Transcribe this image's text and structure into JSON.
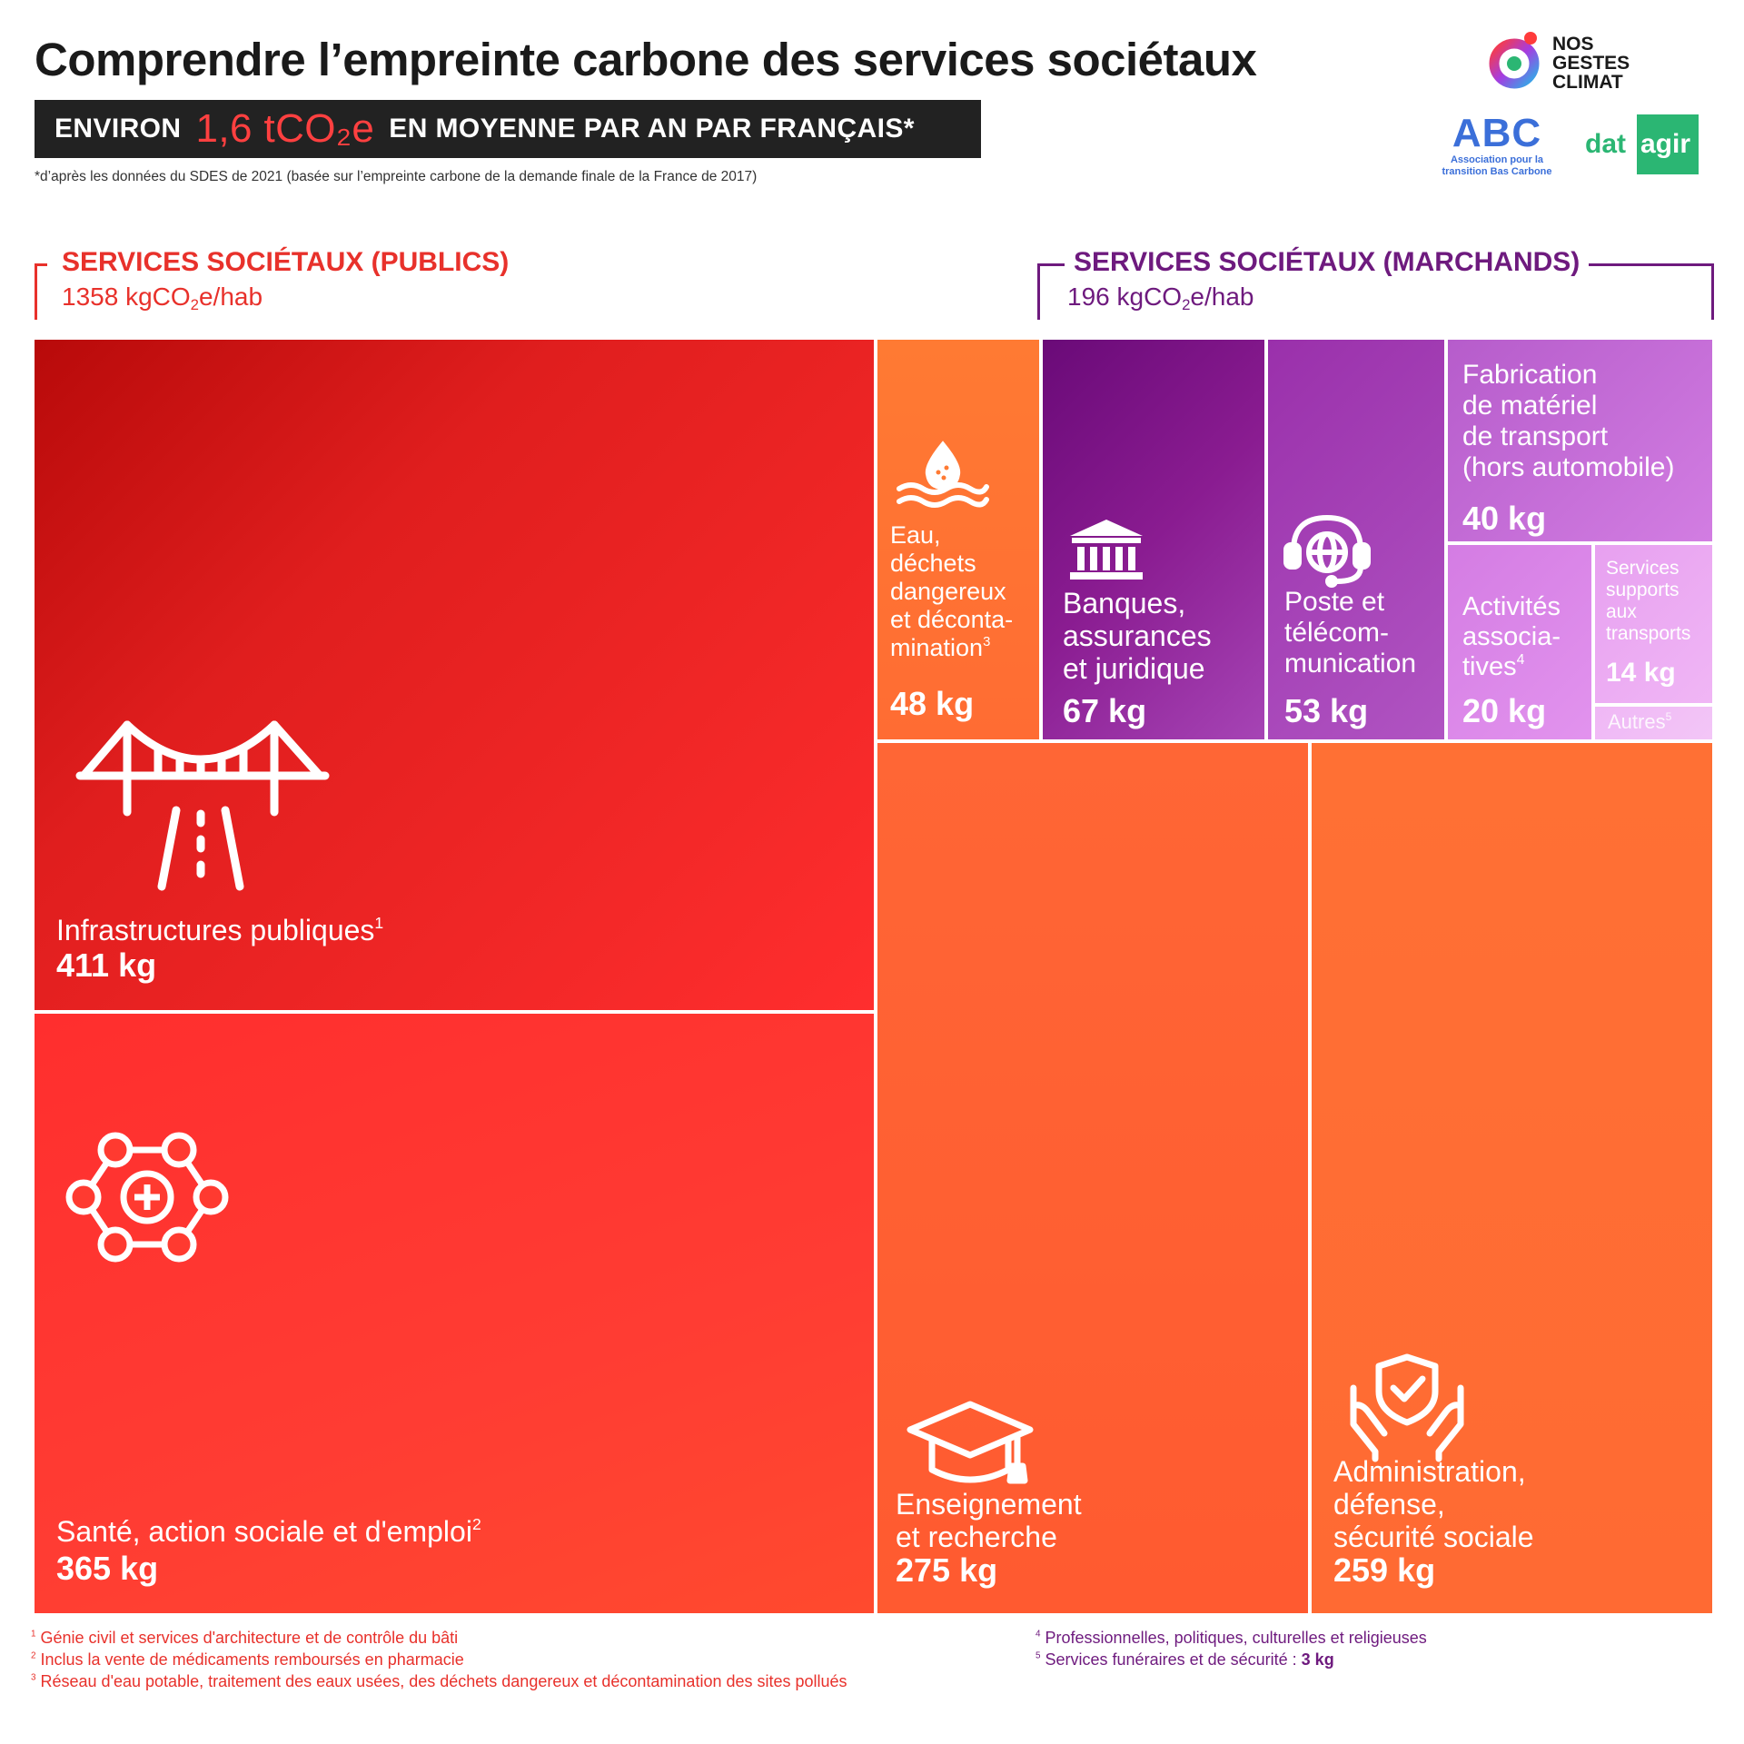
{
  "header": {
    "title": "Comprendre l’empreinte carbone des services sociétaux",
    "banner_left": "ENVIRON",
    "banner_highlight": "1,6 tCO₂e",
    "banner_right": "EN MOYENNE PAR AN PAR FRANÇAIS*",
    "source_note": "*d’après les données du SDES de 2021 (basée sur l’empreinte carbone de la demande finale de la France de 2017)"
  },
  "logos": {
    "nos_gestes_climat": [
      "NOS",
      "GESTES",
      "CLIMAT"
    ],
    "abc_short": "ABC",
    "abc_full_1": "Association pour la",
    "abc_full_2": "transition Bas Carbone",
    "datagir_left": "dat",
    "datagir_right": "agir"
  },
  "groups": {
    "public": {
      "title": "SERVICES SOCIÉTAUX (PUBLICS)",
      "value_prefix": "1358 kgCO",
      "value_sub": "2",
      "value_suffix": "e/hab",
      "color": "#e8312b"
    },
    "market": {
      "title": "SERVICES SOCIÉTAUX (MARCHANDS)",
      "value_prefix": "196 kgCO",
      "value_sub": "2",
      "value_suffix": "e/hab",
      "color": "#6e1a7e"
    }
  },
  "chart_data": {
    "type": "treemap",
    "unit": "kg",
    "groups": [
      {
        "name": "SERVICES SOCIÉTAUX (PUBLICS)",
        "total": 1358,
        "items": [
          {
            "label": "Infrastructures publiques",
            "note": "1",
            "value": 411,
            "value_label": "411 kg",
            "icon": "bridge-road-icon",
            "color": "#e0201e"
          },
          {
            "label": "Santé, action sociale et d'emploi",
            "note": "2",
            "value": 365,
            "value_label": "365 kg",
            "icon": "health-network-icon",
            "color": "#ff3a30"
          },
          {
            "label": "Enseignement\net recherche",
            "note": "",
            "value": 275,
            "value_label": "275 kg",
            "icon": "graduation-cap-icon",
            "color": "#ff5a32"
          },
          {
            "label": "Administration,\ndéfense,\nsécurité sociale",
            "note": "",
            "value": 259,
            "value_label": "259 kg",
            "icon": "protected-hands-icon",
            "color": "#ff6b35"
          },
          {
            "label": "Eau,\ndéchets\ndangereux\net déconta-\nmination",
            "note": "3",
            "value": 48,
            "value_label": "48 kg",
            "icon": "water-drop-icon",
            "color": "#ff7a33"
          }
        ]
      },
      {
        "name": "SERVICES SOCIÉTAUX (MARCHANDS)",
        "total": 196,
        "items": [
          {
            "label": "Banques,\nassurances\net juridique",
            "note": "",
            "value": 67,
            "value_label": "67 kg",
            "icon": "bank-icon",
            "color": "#8a1c91"
          },
          {
            "label": "Poste et\ntélécom-\nmunication",
            "note": "",
            "value": 53,
            "value_label": "53 kg",
            "icon": "headset-globe-icon",
            "color": "#a83cb6"
          },
          {
            "label": "Fabrication\nde matériel\nde transport\n(hors automobile)",
            "note": "",
            "value": 40,
            "value_label": "40 kg",
            "icon": "",
            "color": "#c666d6"
          },
          {
            "label": "Activités\nassocia-\ntives",
            "note": "4",
            "value": 20,
            "value_label": "20 kg",
            "icon": "",
            "color": "#d87ce6"
          },
          {
            "label": "Services\nsupports\naux\ntransports",
            "note": "",
            "value": 14,
            "value_label": "14 kg",
            "icon": "",
            "color": "#e79cef"
          },
          {
            "label": "Autres",
            "note": "5",
            "value": 3,
            "value_label": "",
            "icon": "",
            "color": "#efb5f4"
          }
        ]
      }
    ]
  },
  "footnotes": {
    "left": [
      {
        "n": "1",
        "text": "Génie civil et services d'architecture et de contrôle du bâti"
      },
      {
        "n": "2",
        "text": "Inclus la vente de médicaments remboursés en pharmacie"
      },
      {
        "n": "3",
        "text": "Réseau d'eau potable, traitement des eaux usées, des déchets dangereux et décontamination des sites pollués"
      }
    ],
    "right": [
      {
        "n": "4",
        "text": "Professionnelles, politiques, culturelles et religieuses"
      },
      {
        "n": "5",
        "text": "Services funéraires et de sécurité :",
        "bold": "3 kg"
      }
    ]
  }
}
